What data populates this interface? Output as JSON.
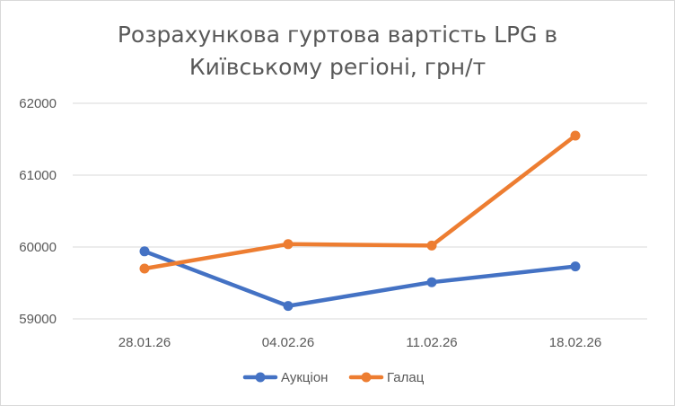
{
  "chart_data": {
    "type": "line",
    "title_lines": [
      "Розрахункова гуртова вартість LPG в",
      "Київському регіоні, грн/т"
    ],
    "categories": [
      "28.01.26",
      "04.02.26",
      "11.02.26",
      "18.02.26"
    ],
    "series": [
      {
        "name": "Аукціон",
        "color": "#4472c4",
        "values": [
          59940,
          59180,
          59510,
          59730
        ]
      },
      {
        "name": "Галац",
        "color": "#ed7d31",
        "values": [
          59700,
          60040,
          60020,
          61550
        ]
      }
    ],
    "ylim": [
      59000,
      62000
    ],
    "yticks": [
      59000,
      60000,
      61000,
      62000
    ],
    "grid": true,
    "legend_position": "bottom",
    "xlabel": "",
    "ylabel": ""
  }
}
